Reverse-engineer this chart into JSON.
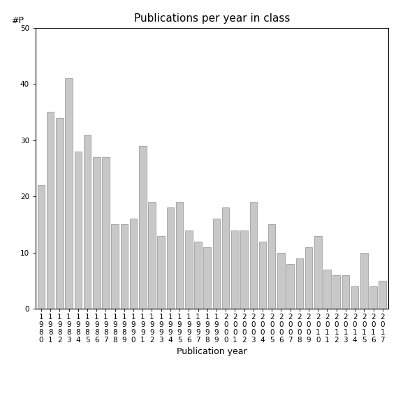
{
  "years": [
    "1980",
    "1981",
    "1982",
    "1983",
    "1984",
    "1985",
    "1986",
    "1987",
    "1988",
    "1989",
    "1990",
    "1991",
    "1992",
    "1993",
    "1994",
    "1995",
    "1996",
    "1997",
    "1998",
    "1999",
    "2000",
    "2001",
    "2002",
    "2003",
    "2004",
    "2005",
    "2006",
    "2007",
    "2008",
    "2009",
    "2010",
    "2011",
    "2012",
    "2013",
    "2014",
    "2015",
    "2016",
    "2017"
  ],
  "values": [
    22,
    35,
    34,
    41,
    28,
    31,
    27,
    27,
    15,
    15,
    16,
    29,
    19,
    13,
    18,
    19,
    14,
    12,
    11,
    16,
    18,
    14,
    14,
    19,
    12,
    15,
    10,
    8,
    9,
    11,
    13,
    7,
    6,
    6,
    4,
    10,
    4,
    5
  ],
  "bar_color": "#c8c8c8",
  "bar_edgecolor": "#909090",
  "title": "Publications per year in class",
  "xlabel": "Publication year",
  "ylabel": "#P",
  "ylim": [
    0,
    50
  ],
  "yticks": [
    0,
    10,
    20,
    30,
    40,
    50
  ],
  "bg_color": "#ffffff",
  "title_fontsize": 11,
  "label_fontsize": 9,
  "tick_fontsize": 7.5
}
